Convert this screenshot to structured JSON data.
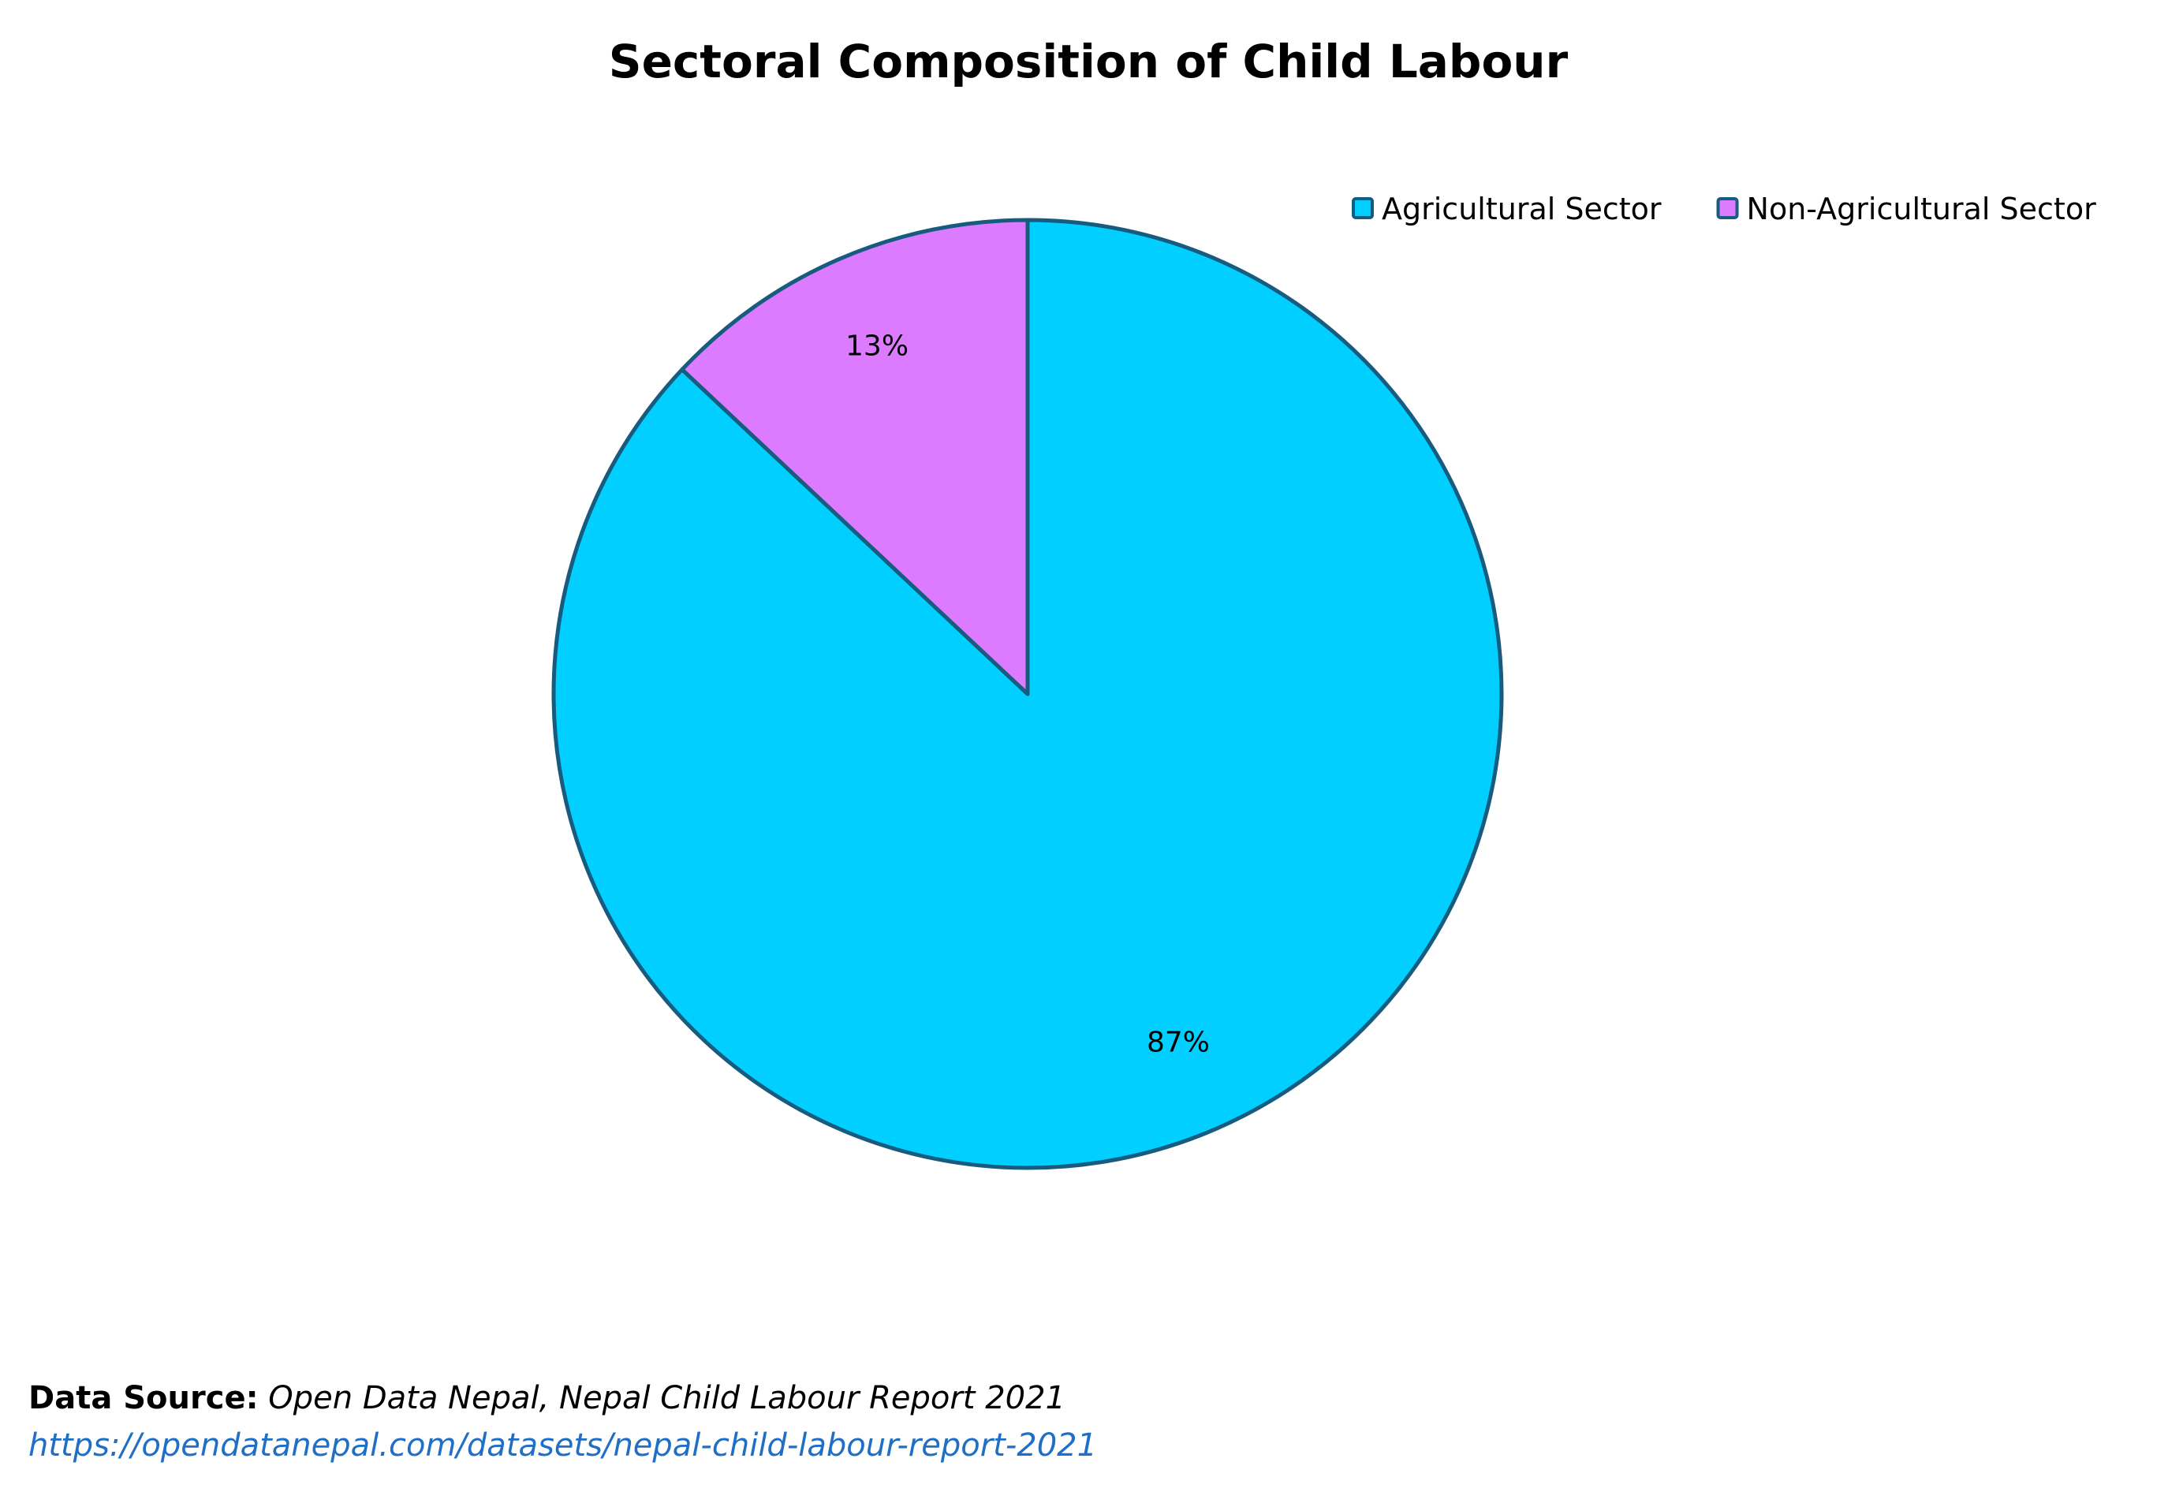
{
  "chart_data": {
    "type": "pie",
    "title": "Sectoral Composition of Child Labour",
    "categories": [
      "Agricultural Sector",
      "Non-Agricultural Sector"
    ],
    "values": [
      87,
      13
    ],
    "labels": [
      "87%",
      "13%"
    ],
    "colors": [
      "#00cfff",
      "#dc7bff"
    ],
    "edge_color": "#175c7e",
    "legend_position": "top-right"
  },
  "source": {
    "label": "Data Source:",
    "text": "Open Data Nepal, Nepal Child Labour Report 2021",
    "url": "https://opendatanepal.com/datasets/nepal-child-labour-report-2021"
  }
}
